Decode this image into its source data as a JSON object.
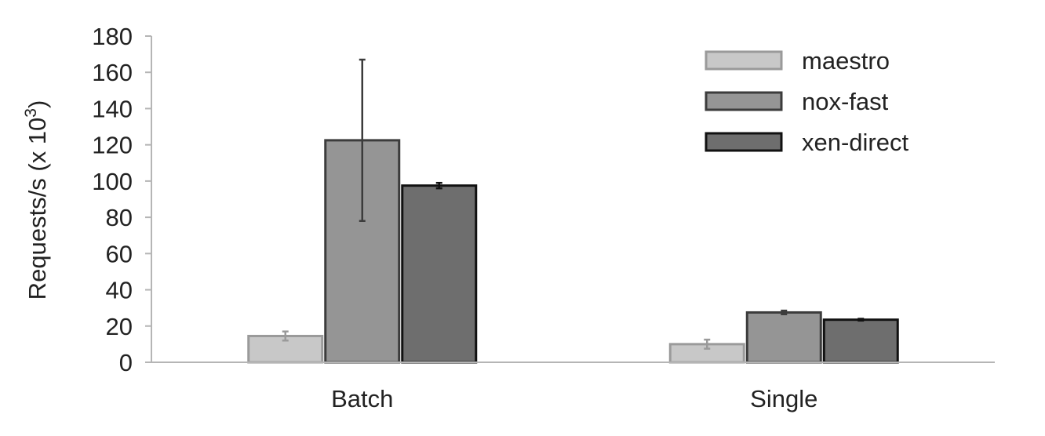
{
  "chart_data": {
    "type": "bar",
    "categories": [
      "Batch",
      "Single"
    ],
    "series": [
      {
        "name": "maestro",
        "color": "#c8c8c8",
        "stroke": "#9a9a9a",
        "values": [
          14.5,
          10
        ],
        "errors": [
          2.5,
          2.5
        ]
      },
      {
        "name": "nox-fast",
        "color": "#959595",
        "stroke": "#3c3c3c",
        "values": [
          122.5,
          27.5
        ],
        "errors": [
          44.5,
          1
        ]
      },
      {
        "name": "xen-direct",
        "color": "#6e6e6e",
        "stroke": "#111111",
        "values": [
          97.5,
          23.5
        ],
        "errors": [
          1.5,
          0.5
        ]
      }
    ],
    "ylabel": "Requests/s (x 10",
    "ylabel_exponent": "3",
    "ylabel_close": ")",
    "ylim": [
      0,
      180
    ],
    "yticks": [
      "0",
      "20",
      "40",
      "60",
      "80",
      "100",
      "120",
      "140",
      "160",
      "180"
    ],
    "grid": false,
    "legend_position": "top-right"
  }
}
